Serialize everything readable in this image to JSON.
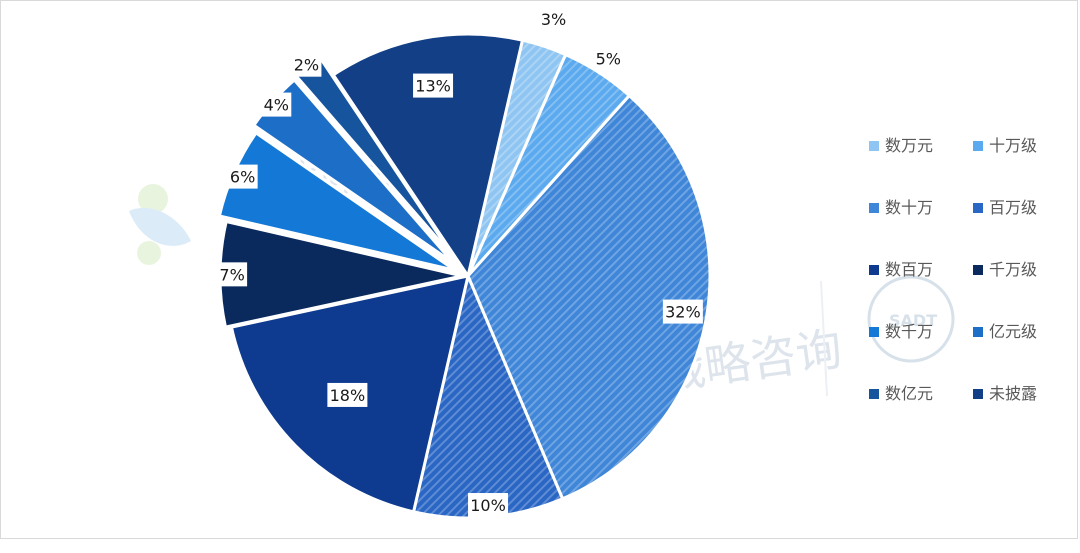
{
  "chart_data": {
    "type": "pie",
    "categories": [
      "数万元",
      "十万级",
      "数十万",
      "百万级",
      "数百万",
      "千万级",
      "数千万",
      "亿元级",
      "数亿元",
      "未披露"
    ],
    "values": [
      3,
      5,
      32,
      10,
      18,
      7,
      6,
      4,
      2,
      13
    ],
    "value_labels": [
      "3%",
      "5%",
      "32%",
      "10%",
      "18%",
      "7%",
      "6%",
      "4%",
      "2%",
      "13%"
    ],
    "colors": [
      "#8fc5f2",
      "#5ba9ee",
      "#3f86d8",
      "#2a66c4",
      "#0e3b8f",
      "#0a2a5e",
      "#1479d6",
      "#1d6ec7",
      "#17549e",
      "#123f86"
    ],
    "legend_position": "right",
    "title": ""
  },
  "watermark": {
    "text": "新战略咨询",
    "seal_text": "SADT"
  }
}
